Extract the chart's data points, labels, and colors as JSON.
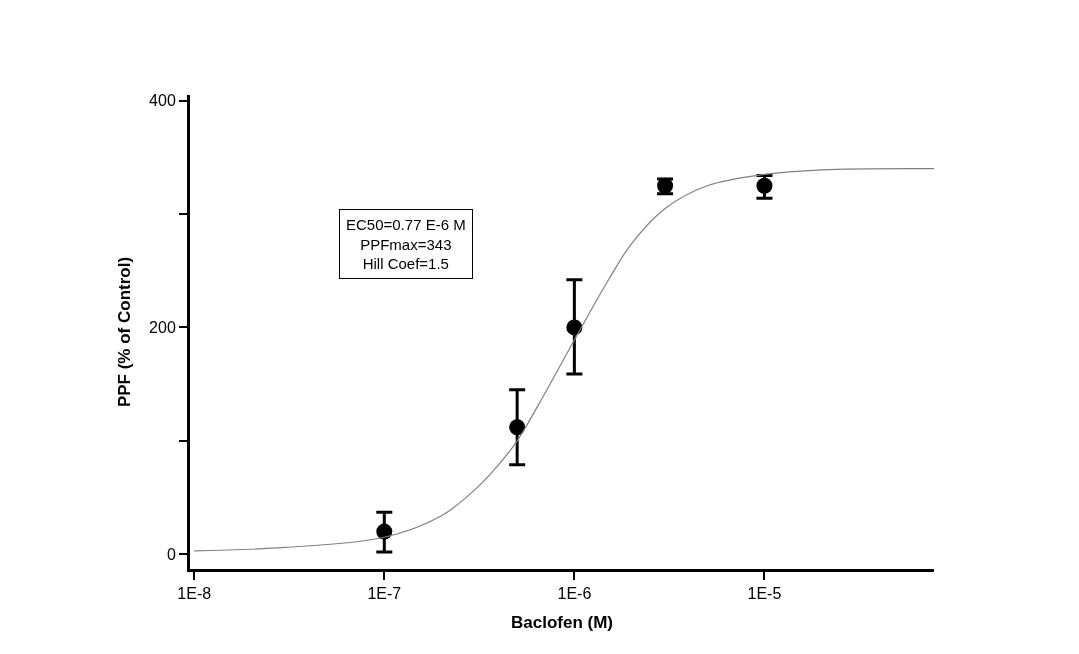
{
  "chart_data": {
    "type": "scatter",
    "xlabel": "Baclofen (M)",
    "ylabel": "PPF (% of Control)",
    "log": "x",
    "xlim": [
      9.5e-09,
      7.8e-05
    ],
    "ylim": [
      -13,
      405
    ],
    "xticks": [
      {
        "value": 1e-08,
        "label": "1E-8"
      },
      {
        "value": 1e-07,
        "label": "1E-7"
      },
      {
        "value": 1e-06,
        "label": "1E-6"
      },
      {
        "value": 1e-05,
        "label": "1E-5"
      }
    ],
    "yticks": [
      0,
      {
        "value": 100,
        "label": null
      },
      200,
      {
        "value": 300,
        "label": null
      },
      400
    ],
    "series": [
      {
        "color": "#000000",
        "marker": "circle",
        "x": [
          1e-07,
          5e-07,
          1e-06,
          3e-06,
          1e-05
        ],
        "values": [
          20,
          112,
          200,
          325,
          325
        ],
        "errors": [
          [
            2,
            37
          ],
          [
            79,
            145
          ],
          [
            159,
            242
          ],
          [
            318,
            331
          ],
          [
            314,
            334
          ]
        ]
      },
      {
        "type": "line",
        "color": "#808080",
        "line_style": "solid",
        "x": [
          1e-08,
          3e-08,
          1e-07,
          2e-07,
          3e-07,
          4e-07,
          5e-07,
          7e-07,
          1e-06,
          1.5e-06,
          2e-06,
          3e-06,
          5e-06,
          1e-05,
          2e-05,
          7.8e-05
        ],
        "values": [
          3,
          6,
          15,
          34,
          57,
          79,
          100,
          142,
          189,
          241,
          274,
          305,
          325,
          335,
          339,
          340
        ]
      }
    ],
    "annotations": [
      "EC50=0.77 E-6 M",
      "PPFmax=343",
      "Hill Coef=1.5"
    ]
  }
}
